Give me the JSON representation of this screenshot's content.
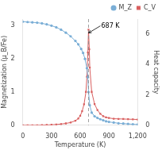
{
  "chart_data": {
    "type": "line",
    "x_label": "Temperature (K)",
    "y_label": "Magnetization (μ_B/Fe)",
    "y2_label": "Heat capacity",
    "xlim": [
      0,
      1200
    ],
    "xticks": [
      0,
      300,
      600,
      900,
      1200
    ],
    "ylim": [
      0,
      3.2
    ],
    "yticks": [
      0,
      1,
      2,
      3
    ],
    "y2lim": [
      0,
      7
    ],
    "y2ticks": [
      0,
      2,
      4,
      6
    ],
    "grid": false,
    "legend": "upper right",
    "series": [
      {
        "name": "M_Z",
        "color": "#7aaed6",
        "marker": "circle",
        "axis": "y",
        "x": [
          0,
          50,
          100,
          150,
          200,
          250,
          300,
          350,
          400,
          450,
          500,
          550,
          580,
          610,
          630,
          650,
          670,
          680,
          687,
          700,
          720,
          750,
          780,
          810,
          840,
          870,
          900,
          950,
          1000,
          1050,
          1100,
          1150,
          1200
        ],
        "values": [
          3.12,
          3.11,
          3.1,
          3.09,
          3.07,
          3.04,
          3.0,
          2.95,
          2.88,
          2.79,
          2.68,
          2.54,
          2.44,
          2.3,
          2.18,
          2.0,
          1.72,
          1.45,
          1.0,
          0.6,
          0.38,
          0.27,
          0.22,
          0.18,
          0.15,
          0.12,
          0.1,
          0.08,
          0.06,
          0.05,
          0.04,
          0.03,
          0.02
        ]
      },
      {
        "name": "C_V",
        "color": "#d95f5f",
        "marker": "square",
        "axis": "y2",
        "x": [
          0,
          50,
          100,
          150,
          200,
          250,
          300,
          350,
          400,
          450,
          500,
          550,
          580,
          600,
          620,
          640,
          660,
          670,
          680,
          687,
          695,
          700,
          720,
          750,
          780,
          810,
          840,
          870,
          900,
          950,
          1000,
          1050,
          1100,
          1150,
          1200
        ],
        "values": [
          0.0,
          0.0,
          0.0,
          0.0,
          0.01,
          0.02,
          0.03,
          0.05,
          0.08,
          0.12,
          0.18,
          0.3,
          0.44,
          0.62,
          0.92,
          1.38,
          2.2,
          3.2,
          4.8,
          6.3,
          5.0,
          3.8,
          2.2,
          1.4,
          1.0,
          0.75,
          0.6,
          0.52,
          0.48,
          0.43,
          0.42,
          0.41,
          0.4,
          0.39,
          0.38
        ]
      }
    ],
    "vlines": [
      {
        "x": 687,
        "line_style": "dashed"
      }
    ],
    "annotations": [
      {
        "text": "687 K",
        "x": 687,
        "y": 2.78
      }
    ]
  }
}
